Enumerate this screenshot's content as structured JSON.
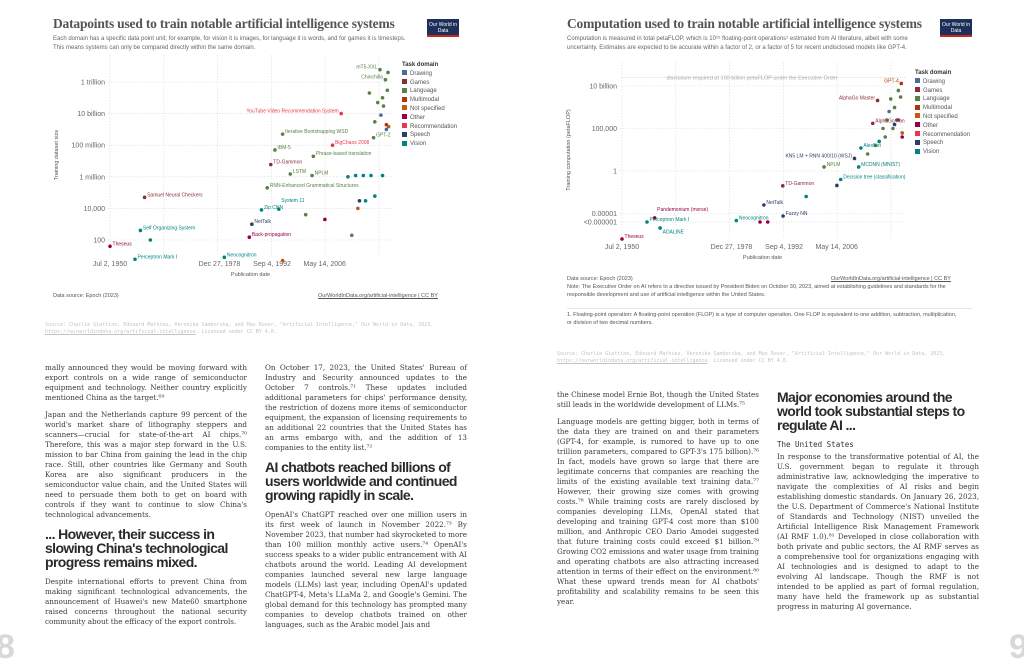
{
  "domains": [
    {
      "name": "Drawing",
      "color": "#4c6a9c"
    },
    {
      "name": "Games",
      "color": "#883039"
    },
    {
      "name": "Language",
      "color": "#578145"
    },
    {
      "name": "Multimodal",
      "color": "#b13507"
    },
    {
      "name": "Not specified",
      "color": "#c05917"
    },
    {
      "name": "Other",
      "color": "#970046"
    },
    {
      "name": "Recommendation",
      "color": "#e43a4d"
    },
    {
      "name": "Speech",
      "color": "#2c3e64"
    },
    {
      "name": "Vision",
      "color": "#00847e"
    }
  ],
  "chart1": {
    "title": "Datapoints used to train notable artificial intelligence systems",
    "subtitle": "Each domain has a specific data point unit; for example, for vision it is images, for language it is words, and for games it is timesteps. This means systems can only be compared directly within the same domain.",
    "logo": "Our World in Data",
    "legend_title": "Task domain",
    "data_source": "Data source: Epoch (2023)",
    "link": "OurWorldInData.org/artificial-intelligence | CC BY",
    "citation": "Source: Charlie Giattino, Edouard Mathieu, Veronika Samborska, and Max Roser, \"Artificial Intelligence,\" Our World in Data, 2023,",
    "citation_url": "https://ourworldindata.org/artificial-intelligence",
    "citation_end": ". Licensed under CC BY 4.0."
  },
  "chart2": {
    "title": "Computation used to train notable artificial intelligence systems",
    "subtitle": "Computation is measured in total petaFLOP, which is 10¹⁵ floating-point operations¹ estimated from AI literature, albeit with some uncertainty. Estimates are expected to be accurate within a factor of 2, or a factor of 5 for recent undisclosed models like GPT-4.",
    "logo": "Our World in Data",
    "legend_title": "Task domain",
    "data_source": "Data source: Epoch (2023)",
    "link": "OurWorldInData.org/artificial-intelligence | CC BY",
    "note": "Note: The Executive Order on AI refers to a directive issued by President Biden on October 30, 2023, aimed at establishing guidelines and standards for the responsible development and use of artificial intelligence within the United States.",
    "footnote": "1. Floating-point operation: A floating-point operation (FLOP) is a type of computer operation. One FLOP is equivalent to one addition, subtraction, multiplication, or division of two decimal numbers.",
    "citation": "Source: Charlie Giattino, Edouard Mathieu, Veronika Samborska, and Max Roser, \"Artificial Intelligence,\" Our World in Data, 2023,",
    "citation_url": "https://ourworldindata.org/artificial-intelligence",
    "citation_end": ". Licensed under CC BY 4.0."
  },
  "chart_data": [
    {
      "type": "scatter",
      "title": "Datapoints used to train notable artificial intelligence systems",
      "xlabel": "Publication date",
      "ylabel": "Training dataset size",
      "yscale": "log",
      "grid": true,
      "legend": "right",
      "xticks": [
        "Jul 2, 1950",
        "Dec 27, 1978",
        "Sep 4, 1992",
        "May 14, 2006"
      ],
      "yticks": [
        "100",
        "10,000",
        "1 million",
        "100 million",
        "10 billion",
        "1 trillion"
      ],
      "points": [
        {
          "label": "Theseus",
          "x": "1950-07-02",
          "y": 40,
          "domain": "Other"
        },
        {
          "label": "Perceptron Mark I",
          "x": "1957-01-01",
          "y": 6,
          "domain": "Vision"
        },
        {
          "label": "Self Organizing System",
          "x": "1958-06-01",
          "y": 400,
          "domain": "Vision"
        },
        {
          "label": "",
          "x": "1961-01-01",
          "y": 100,
          "domain": "Vision"
        },
        {
          "label": "Samuel Neural Checkers",
          "x": "1959-07-01",
          "y": 50000,
          "domain": "Games"
        },
        {
          "label": "Neocognitron",
          "x": "1980-04-01",
          "y": 8,
          "domain": "Vision"
        },
        {
          "label": "Back-propagation",
          "x": "1986-10-01",
          "y": 150,
          "domain": "Other"
        },
        {
          "label": "NetTalk",
          "x": "1987-06-01",
          "y": 1000,
          "domain": "Speech"
        },
        {
          "label": "Zip CNN",
          "x": "1989-12-01",
          "y": 8000,
          "domain": "Vision"
        },
        {
          "label": "RNN-Enhanced Grammatical Structures",
          "x": "1991-06-01",
          "y": 200000,
          "domain": "Language"
        },
        {
          "label": "TD-Gammon",
          "x": "1992-05-01",
          "y": 6000000,
          "domain": "Games"
        },
        {
          "label": "IBM-5",
          "x": "1993-06-01",
          "y": 50000000,
          "domain": "Language"
        },
        {
          "label": "System 11",
          "x": "1994-06-01",
          "y": 9000,
          "domain": "Vision"
        },
        {
          "label": "Iterative Bootstrapping WSD",
          "x": "1995-06-01",
          "y": 500000000,
          "domain": "Language"
        },
        {
          "label": "LSTM",
          "x": "1997-06-01",
          "y": 1500000,
          "domain": "Language"
        },
        {
          "label": "NPLM",
          "x": "2003-02-01",
          "y": 1200000,
          "domain": "Language"
        },
        {
          "label": "Phrase-based translation",
          "x": "2003-06-01",
          "y": 20000000,
          "domain": "Language"
        },
        {
          "label": "BigChaos 2008",
          "x": "2008-06-01",
          "y": 100000000,
          "domain": "Recommendation"
        },
        {
          "label": "YouTube Video Recommendation System",
          "x": "2010-09-01",
          "y": 10000000000,
          "domain": "Recommendation"
        },
        {
          "label": "GPT-2",
          "x": "2019-02-01",
          "y": 300000000,
          "domain": "Language"
        },
        {
          "label": "Chinchilla",
          "x": "2022-03-01",
          "y": 1400000000000,
          "domain": "Language"
        },
        {
          "label": "mT5-XXL",
          "x": "2020-10-01",
          "y": 6000000000000,
          "domain": "Language"
        },
        {
          "label": "",
          "x": "2012-06-01",
          "y": 1000000,
          "domain": "Vision"
        },
        {
          "label": "",
          "x": "2014-06-01",
          "y": 1200000,
          "domain": "Vision"
        },
        {
          "label": "",
          "x": "2016-06-01",
          "y": 1200000,
          "domain": "Vision"
        },
        {
          "label": "",
          "x": "2018-06-01",
          "y": 1200000,
          "domain": "Vision"
        },
        {
          "label": "",
          "x": "2021-06-01",
          "y": 1200000,
          "domain": "Vision"
        },
        {
          "label": "",
          "x": "2017-01-01",
          "y": 30000,
          "domain": "Vision"
        },
        {
          "label": "",
          "x": "2019-06-01",
          "y": 60000,
          "domain": "Vision"
        },
        {
          "label": "",
          "x": "2015-06-01",
          "y": 30000,
          "domain": "Speech"
        },
        {
          "label": "",
          "x": "2021-01-01",
          "y": 8000000000,
          "domain": "Drawing"
        },
        {
          "label": "",
          "x": "2022-06-01",
          "y": 1000000000,
          "domain": "Drawing"
        },
        {
          "label": "",
          "x": "2021-06-01",
          "y": 100000000000,
          "domain": "Language"
        },
        {
          "label": "",
          "x": "2022-09-01",
          "y": 300000000000,
          "domain": "Language"
        },
        {
          "label": "",
          "x": "2020-03-01",
          "y": 50000000000,
          "domain": "Language"
        },
        {
          "label": "",
          "x": "2019-06-01",
          "y": 3000000000,
          "domain": "Language"
        },
        {
          "label": "",
          "x": "2021-09-01",
          "y": 30000000000,
          "domain": "Language"
        },
        {
          "label": "",
          "x": "2022-11-01",
          "y": 4000000000000,
          "domain": "Language"
        },
        {
          "label": "",
          "x": "2018-01-01",
          "y": 200000000000,
          "domain": "Language"
        },
        {
          "label": "",
          "x": "2022-06-01",
          "y": 2000000000,
          "domain": "Multimodal"
        },
        {
          "label": "",
          "x": "2023-01-01",
          "y": 1500000000,
          "domain": "Not specified"
        },
        {
          "label": "",
          "x": "2015-01-01",
          "y": 10000,
          "domain": "Not specified"
        },
        {
          "label": "",
          "x": "2001-06-01",
          "y": 4000,
          "domain": "Language"
        },
        {
          "label": "",
          "x": "2006-06-01",
          "y": 2000,
          "domain": "Other"
        },
        {
          "label": "",
          "x": "2013-06-01",
          "y": 200,
          "domain": "Language"
        },
        {
          "label": "",
          "x": "1995-06-01",
          "y": 5,
          "domain": "Not specified"
        }
      ]
    },
    {
      "type": "scatter",
      "title": "Computation used to train notable artificial intelligence systems",
      "xlabel": "Publication date",
      "ylabel": "Training computation (petaFLOP)",
      "yscale": "log",
      "grid": true,
      "legend": "right",
      "xticks": [
        "Jul 2, 1950",
        "Dec 27, 1978",
        "Sep 4, 1992",
        "May 14, 2006"
      ],
      "yticks": [
        "<0.000001",
        "0.00001",
        "1",
        "100,000",
        "10 billion"
      ],
      "annotation": "disclosure required at 100 billion petaFLOP under the Executive Order",
      "points": [
        {
          "label": "Theseus",
          "x": "1950-07-02",
          "y": 1e-08,
          "domain": "Other"
        },
        {
          "label": "Perceptron Mark I",
          "x": "1957-01-01",
          "y": 1e-06,
          "domain": "Vision"
        },
        {
          "label": "ADALINE",
          "x": "1960-06-01",
          "y": 2e-07,
          "domain": "Vision"
        },
        {
          "label": "Pandemonium (morse)",
          "x": "1959-01-01",
          "y": 3e-06,
          "domain": "Other"
        },
        {
          "label": "Neocognitron",
          "x": "1980-04-01",
          "y": 1.5e-06,
          "domain": "Vision"
        },
        {
          "label": "",
          "x": "1986-06-01",
          "y": 1e-06,
          "domain": "Other"
        },
        {
          "label": "",
          "x": "1988-06-01",
          "y": 1e-06,
          "domain": "Other"
        },
        {
          "label": "NetTalk",
          "x": "1987-06-01",
          "y": 0.0001,
          "domain": "Speech"
        },
        {
          "label": "Fuzzy NN",
          "x": "1992-06-01",
          "y": 5e-06,
          "domain": "Speech"
        },
        {
          "label": "TD-Gammon",
          "x": "1992-05-01",
          "y": 0.018,
          "domain": "Games"
        },
        {
          "label": "",
          "x": "1998-06-01",
          "y": 0.001,
          "domain": "Vision"
        },
        {
          "label": "NPLM",
          "x": "2003-02-01",
          "y": 3,
          "domain": "Language"
        },
        {
          "label": "",
          "x": "2006-06-01",
          "y": 0.02,
          "domain": "Speech"
        },
        {
          "label": "Decision tree (classification)",
          "x": "2007-06-01",
          "y": 0.1,
          "domain": "Vision"
        },
        {
          "label": "KN5 LM + RNN 400/10 (WSJ)",
          "x": "2011-01-01",
          "y": 30,
          "domain": "Speech"
        },
        {
          "label": "MCDNN (MNIST)",
          "x": "2012-02-01",
          "y": 3,
          "domain": "Vision"
        },
        {
          "label": "AlexNet",
          "x": "2012-09-01",
          "y": 500,
          "domain": "Vision"
        },
        {
          "label": "AlphaGo Fan",
          "x": "2015-10-01",
          "y": 400000,
          "domain": "Games"
        },
        {
          "label": "AlphaGo Master",
          "x": "2017-01-01",
          "y": 200000000,
          "domain": "Games"
        },
        {
          "label": "GPT-4",
          "x": "2023-03-01",
          "y": 20000000000,
          "domain": "Multimodal"
        },
        {
          "label": "",
          "x": "2014-06-01",
          "y": 100,
          "domain": "Language"
        },
        {
          "label": "",
          "x": "2016-06-01",
          "y": 1000,
          "domain": "Language"
        },
        {
          "label": "",
          "x": "2018-06-01",
          "y": 100000,
          "domain": "Language"
        },
        {
          "label": "",
          "x": "2019-06-01",
          "y": 1000000,
          "domain": "Language"
        },
        {
          "label": "",
          "x": "2020-06-01",
          "y": 300000000,
          "domain": "Language"
        },
        {
          "label": "",
          "x": "2021-06-01",
          "y": 30000000,
          "domain": "Language"
        },
        {
          "label": "",
          "x": "2022-06-01",
          "y": 3000000000,
          "domain": "Language"
        },
        {
          "label": "",
          "x": "2023-01-01",
          "y": 500000000,
          "domain": "Language"
        },
        {
          "label": "",
          "x": "2021-01-01",
          "y": 100000,
          "domain": "Language"
        },
        {
          "label": "",
          "x": "2019-01-01",
          "y": 10000,
          "domain": "Language"
        },
        {
          "label": "",
          "x": "2017-06-01",
          "y": 3000,
          "domain": "Vision"
        },
        {
          "label": "",
          "x": "2020-01-01",
          "y": 10000000,
          "domain": "Drawing"
        },
        {
          "label": "",
          "x": "2022-01-01",
          "y": 1000000,
          "domain": "Drawing"
        },
        {
          "label": "",
          "x": "2021-06-01",
          "y": 300000,
          "domain": "Speech"
        },
        {
          "label": "",
          "x": "2023-06-01",
          "y": 10000,
          "domain": "Other"
        },
        {
          "label": "",
          "x": "2022-06-01",
          "y": 1000000,
          "domain": "Games"
        },
        {
          "label": "",
          "x": "2023-06-01",
          "y": 30000,
          "domain": "Not specified"
        }
      ]
    }
  ],
  "left_page": {
    "col1": [
      "mally announced they would be moving forward with export controls on a wide range of semiconductor equipment and technology. Neither country explicitly mentioned China as the target.⁶⁹",
      "Japan and the Netherlands capture 99 percent of the world's market share of lithography steppers and scanners—crucial for state-of-the-art AI chips.⁷⁰ Therefore, this was a major step forward in the U.S. mission to bar China from gaining the lead in the chip race. Still, other countries like Germany and South Korea are also significant producers in the semiconductor value chain, and the United States will need to persuade them both to get on board with controls if they want to continue to slow China's technological advancements."
    ],
    "heading1": "... However, their success in slowing China's technological progress remains mixed.",
    "col1b": "Despite international efforts to prevent China from making significant technological advancements, the announcement of Huawei's new Mate60 smartphone raised concerns throughout the national security community about the efficacy of the export controls.",
    "col2a": "On October 17, 2023, the United States' Bureau of Industry and Security announced updates to the October 7 controls.⁷¹ These updates included additional parameters for chips' performance density, the restriction of dozens more items of semiconductor equipment, the expansion of licensing requirements to an additional 22 countries that the United States has an arms embargo with, and the addition of 13 companies to the entity list.⁷²",
    "heading2": "AI chatbots reached billions of users worldwide and continued growing rapidly in scale.",
    "col2b": "OpenAI's ChatGPT reached over one million users in its first week of launch in November 2022.⁷³ By November 2023, that number had skyrocketed to more than 100 million monthly active users.⁷⁴ OpenAI's success speaks to a wider public entrancement with AI chatbots around the world. Leading AI development companies launched several new large language models (LLMs) last year, including OpenAI's updated ChatGPT-4, Meta's LLaMa 2, and Google's Gemini. The global demand for this technology has prompted many companies to develop chatbots trained on other languages, such as the Arabic model Jais and",
    "page_number": "8"
  },
  "right_page": {
    "col1a": "the Chinese model Ernie Bot, though the United States still leads in the worldwide development of LLMs.⁷⁵",
    "col1b": "Language models are getting bigger, both in terms of the data they are trained on and their parameters (GPT-4, for example, is rumored to have up to one trillion parameters, compared to GPT-3's 175 billion).⁷⁶ In fact, models have grown so large that there are legitimate concerns that companies are reaching the limits of the existing available text training data.⁷⁷ However, their growing size comes with growing costs.⁷⁸ While training costs are rarely disclosed by companies developing LLMs, OpenAI stated that developing and training GPT-4 cost more than $100 million, and Anthropic CEO Dario Amodei suggested that future training costs could exceed $1 billion.⁷⁹ Growing CO2 emissions and water usage from training and operating chatbots are also attracting increased attention in terms of their effect on the environment.⁸⁰ What these upward trends mean for AI chatbots' profitability and scalability remains to be seen this year.",
    "heading": "Major economies around the world took substantial steps to regulate AI ...",
    "subheading": "The United States",
    "col2": "In response to the transformative potential of AI, the U.S. government began to regulate it through administrative law, acknowledging the imperative to navigate the complexities of AI risks and begin establishing domestic standards. On January 26, 2023, the U.S. Department of Commerce's National Institute of Standards and Technology (NIST) unveiled the Artificial Intelligence Risk Management Framework (AI RMF 1.0).⁸¹ Developed in close collaboration with both private and public sectors, the AI RMF serves as a comprehensive tool for organizations engaging with AI technologies and is designed to adapt to the evolving AI landscape. Though the RMF is not intended to be applied as part of formal regulation, many have held the framework up as substantial progress in maturing AI governance.",
    "page_number": "9"
  }
}
